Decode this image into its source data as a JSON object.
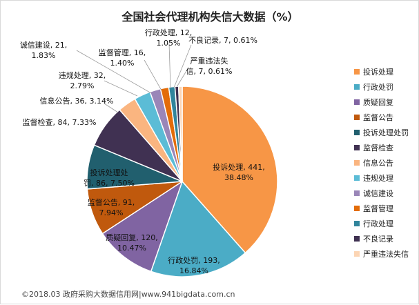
{
  "chart_data": {
    "type": "pie",
    "title": "全国社会代理机构失信大数据（%）",
    "unit": "%",
    "slices": [
      {
        "name": "投诉处理",
        "value": 441,
        "percent": 38.48,
        "color": "#f79646",
        "label": "投诉处理, 441,",
        "label2": "38.48%"
      },
      {
        "name": "行政处罚",
        "value": 193,
        "percent": 16.84,
        "color": "#4bacc6",
        "label": "行政处罚, 193,",
        "label2": "16.84%"
      },
      {
        "name": "质疑回复",
        "value": 120,
        "percent": 10.47,
        "color": "#8064a2",
        "label": "质疑回复, 120,",
        "label2": "10.47%"
      },
      {
        "name": "监督公告",
        "value": 91,
        "percent": 7.94,
        "color": "#c0590d",
        "label": "监督公告, 91,",
        "label2": "7.94%"
      },
      {
        "name": "投诉处理处罚",
        "value": 86,
        "percent": 7.5,
        "color": "#215f6e",
        "label": "投诉处理处",
        "label2": "罚, 86, 7.50%"
      },
      {
        "name": "监督检查",
        "value": 84,
        "percent": 7.33,
        "color": "#403152",
        "label": "监督检查, 84, 7.33%",
        "label2": ""
      },
      {
        "name": "信息公告",
        "value": 36,
        "percent": 3.14,
        "color": "#fab580",
        "label": "信息公告, 36, 3.14%",
        "label2": ""
      },
      {
        "name": "违规处理",
        "value": 32,
        "percent": 2.79,
        "color": "#5bbcd6",
        "label": "违规处理, 32,",
        "label2": "2.79%"
      },
      {
        "name": "诚信建设",
        "value": 21,
        "percent": 1.83,
        "color": "#9a86b8",
        "label": "诚信建设, 21,",
        "label2": "1.83%"
      },
      {
        "name": "监督管理",
        "value": 16,
        "percent": 1.4,
        "color": "#e36c09",
        "label": "监督管理, 16,",
        "label2": "1.40%"
      },
      {
        "name": "行政处理",
        "value": 12,
        "percent": 1.05,
        "color": "#31859c",
        "label": "行政处理, 12,",
        "label2": "1.05%"
      },
      {
        "name": "不良记录",
        "value": 7,
        "percent": 0.61,
        "color": "#3f3151",
        "label": "不良记录, 7, 0.61%",
        "label2": ""
      },
      {
        "name": "严重违法失信",
        "value": 7,
        "percent": 0.61,
        "color": "#fcd5b4",
        "label": "严重违法失",
        "label2": "信, 7, 0.61%"
      }
    ],
    "legend_position": "right"
  },
  "footer": "©2018.03 政府采购大数据信用网|www.941bigdata.com.cn"
}
